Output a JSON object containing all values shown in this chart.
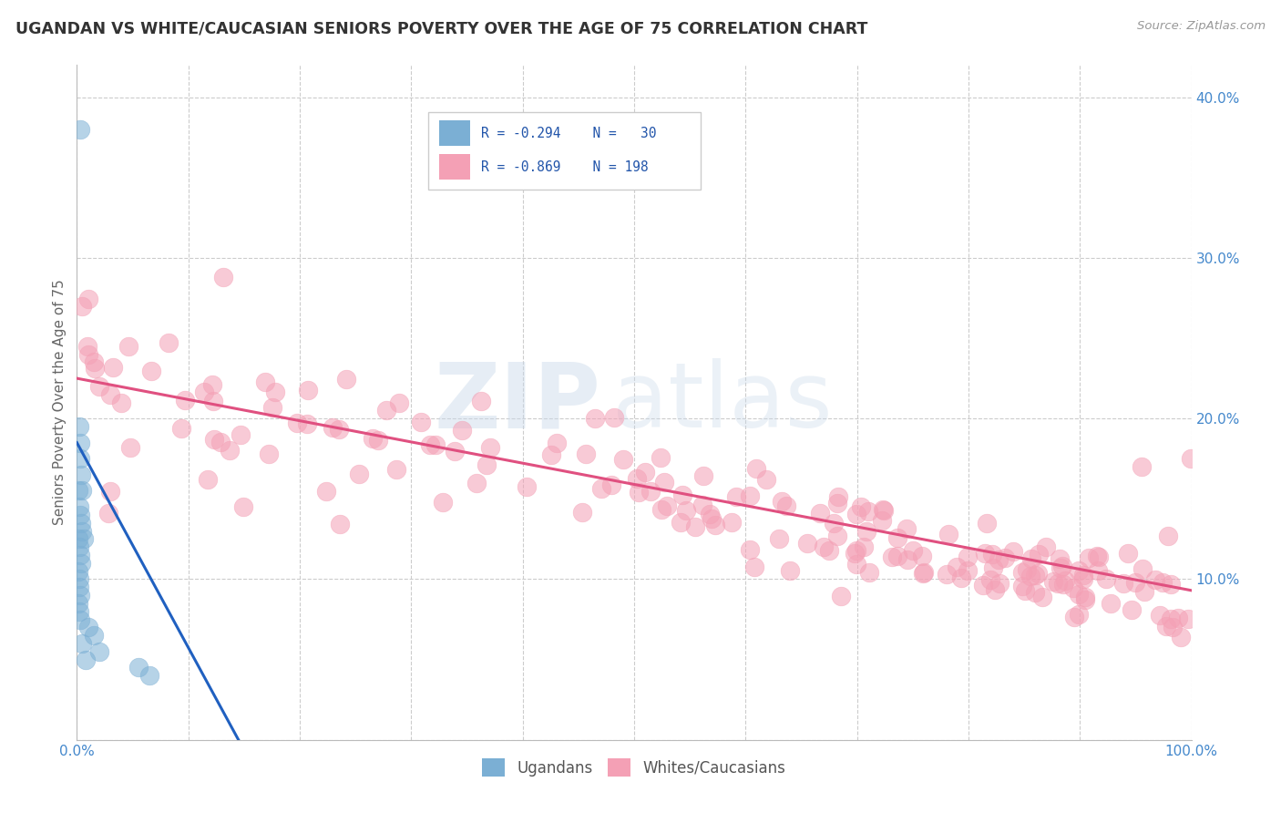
{
  "title": "UGANDAN VS WHITE/CAUCASIAN SENIORS POVERTY OVER THE AGE OF 75 CORRELATION CHART",
  "source": "Source: ZipAtlas.com",
  "ylabel": "Seniors Poverty Over the Age of 75",
  "xlim": [
    0,
    1.0
  ],
  "ylim": [
    0,
    0.42
  ],
  "xticks": [
    0.0,
    0.1,
    0.2,
    0.3,
    0.4,
    0.5,
    0.6,
    0.7,
    0.8,
    0.9,
    1.0
  ],
  "yticks": [
    0.0,
    0.1,
    0.2,
    0.3,
    0.4
  ],
  "ugandan_color": "#7bafd4",
  "white_color": "#f4a0b5",
  "ugandan_line_color": "#2060c0",
  "white_line_color": "#e05080",
  "grid_color": "#cccccc",
  "background_color": "#ffffff",
  "white_line_y_start": 0.225,
  "white_line_y_end": 0.093,
  "ugandan_line_x_start": 0.0,
  "ugandan_line_x_end": 0.145,
  "ugandan_line_y_start": 0.185,
  "ugandan_line_y_end": 0.0
}
